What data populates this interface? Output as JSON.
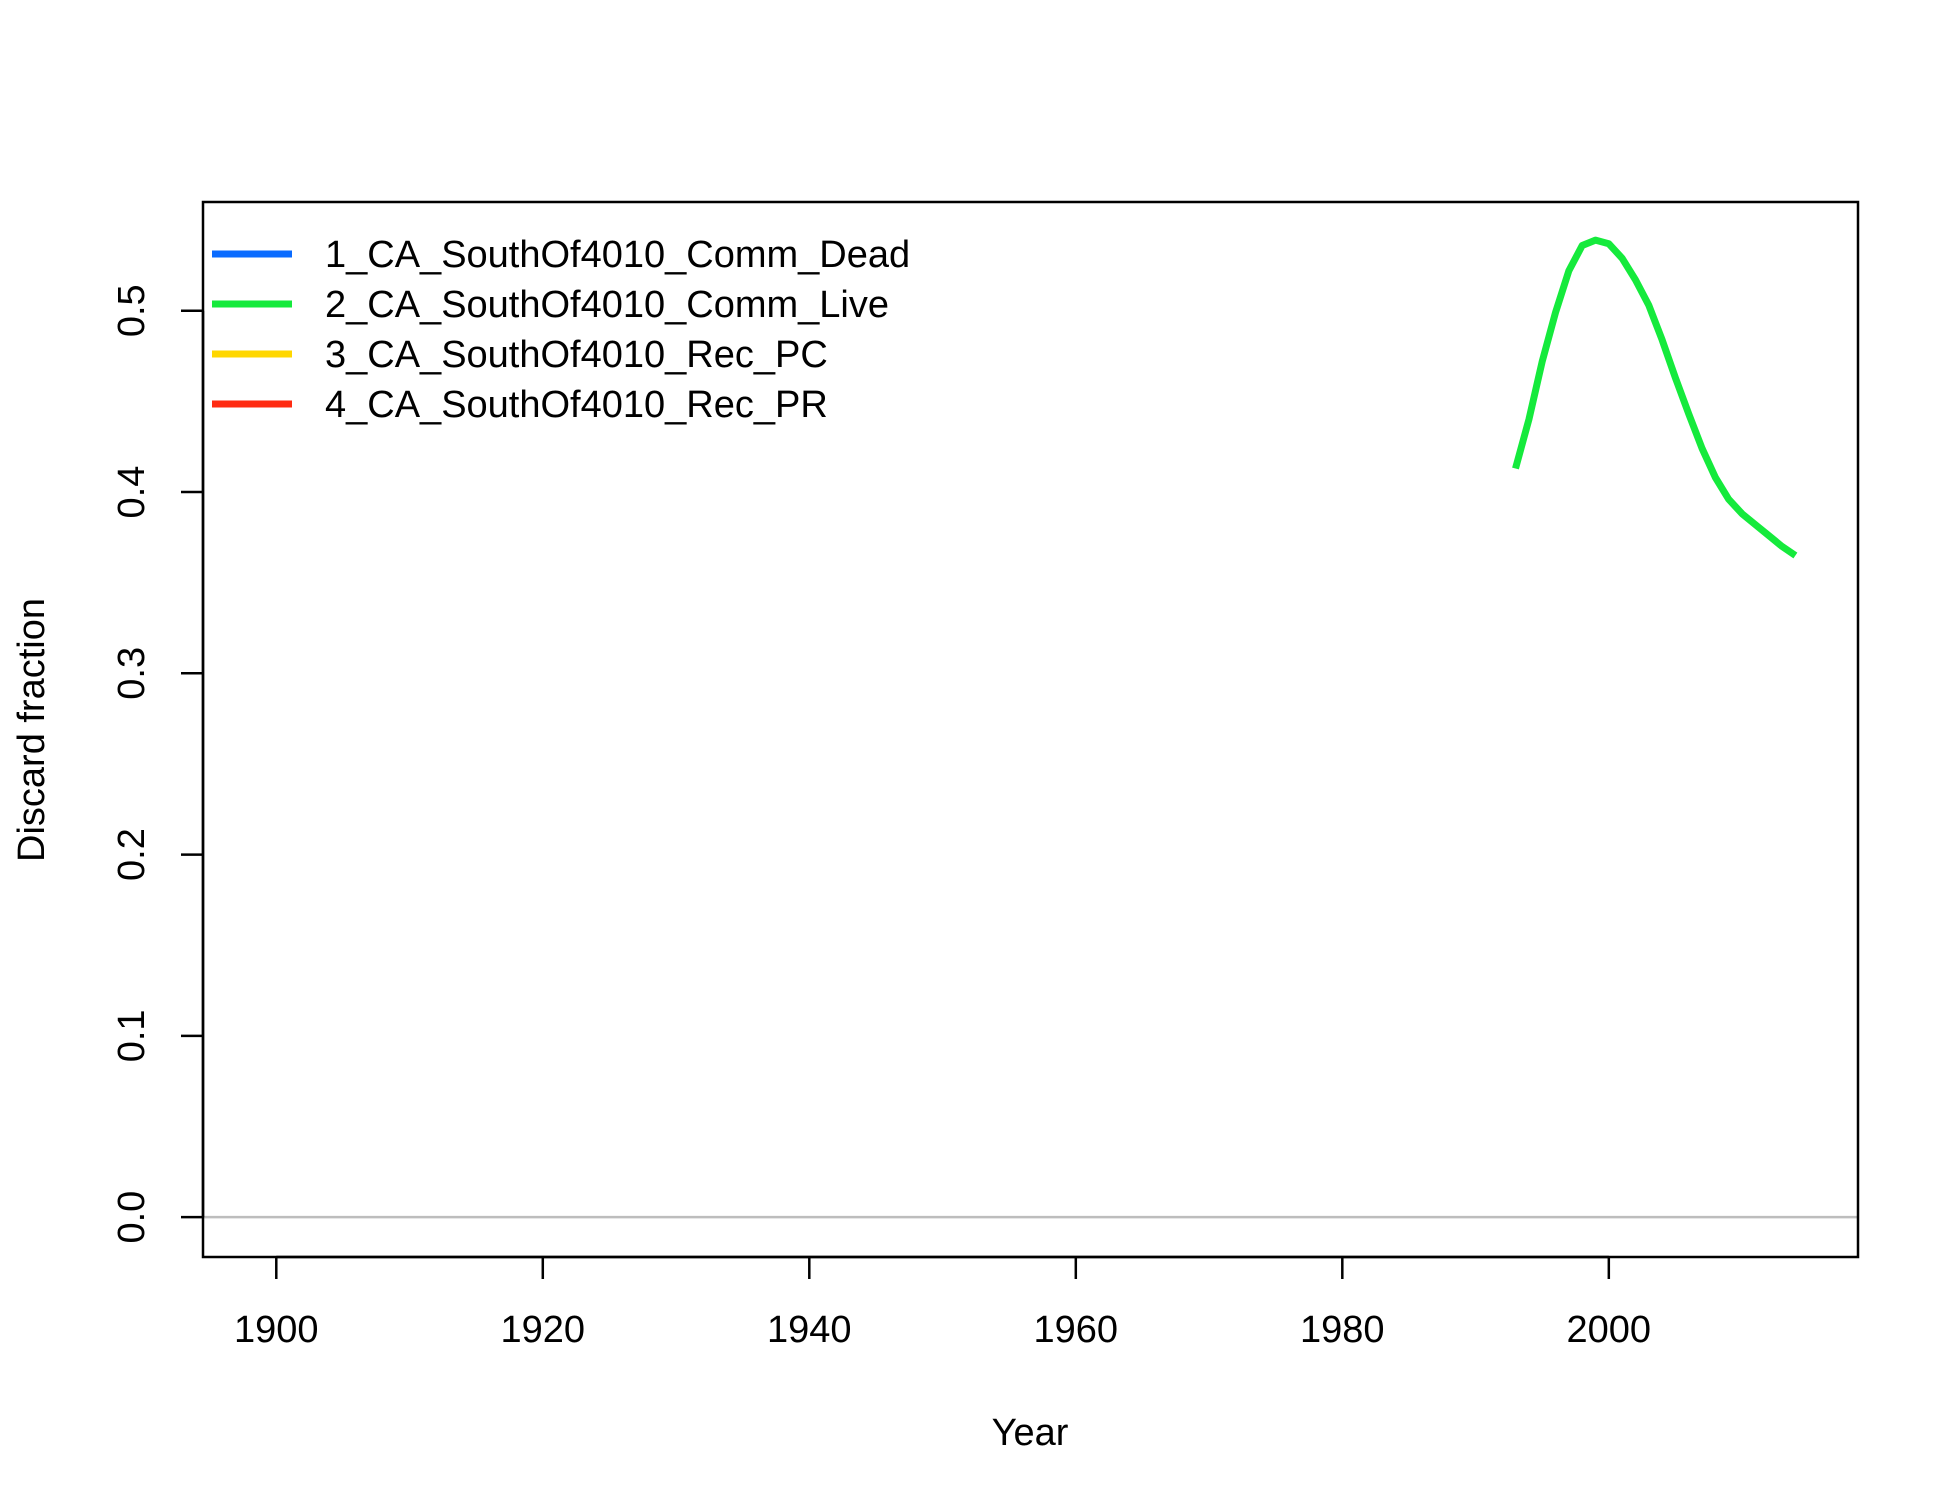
{
  "chart_data": {
    "type": "line",
    "title": "",
    "xlabel": "Year",
    "ylabel": "Discard fraction",
    "xlim": [
      1894.5,
      2018.7
    ],
    "ylim": [
      -0.022,
      0.56
    ],
    "x_ticks": [
      1900,
      1920,
      1940,
      1960,
      1980,
      2000
    ],
    "x_tick_labels": [
      "1900",
      "1920",
      "1940",
      "1960",
      "1980",
      "2000"
    ],
    "y_ticks": [
      0.0,
      0.1,
      0.2,
      0.3,
      0.4,
      0.5
    ],
    "y_tick_labels": [
      "0.0",
      "0.1",
      "0.2",
      "0.3",
      "0.4",
      "0.5"
    ],
    "reference_line": {
      "y": 0,
      "color": "#bdbdbd"
    },
    "grid": false,
    "legend_position": "top-left",
    "series": [
      {
        "name": "1_CA_SouthOf4010_Comm_Dead",
        "color": "#0a6bff",
        "x": [],
        "y": []
      },
      {
        "name": "2_CA_SouthOf4010_Comm_Live",
        "color": "#15ea3c",
        "x": [
          1993,
          1994,
          1995,
          1996,
          1997,
          1998,
          1999,
          2000,
          2001,
          2002,
          2003,
          2004,
          2005,
          2006,
          2007,
          2008,
          2009,
          2010,
          2011,
          2012,
          2013,
          2014
        ],
        "y": [
          0.413,
          0.44,
          0.472,
          0.499,
          0.522,
          0.536,
          0.539,
          0.537,
          0.529,
          0.517,
          0.503,
          0.484,
          0.463,
          0.443,
          0.424,
          0.408,
          0.396,
          0.388,
          0.382,
          0.376,
          0.37,
          0.365
        ]
      },
      {
        "name": "3_CA_SouthOf4010_Rec_PC",
        "color": "#ffd700",
        "x": [],
        "y": []
      },
      {
        "name": "4_CA_SouthOf4010_Rec_PR",
        "color": "#ff2b12",
        "x": [],
        "y": []
      }
    ]
  }
}
